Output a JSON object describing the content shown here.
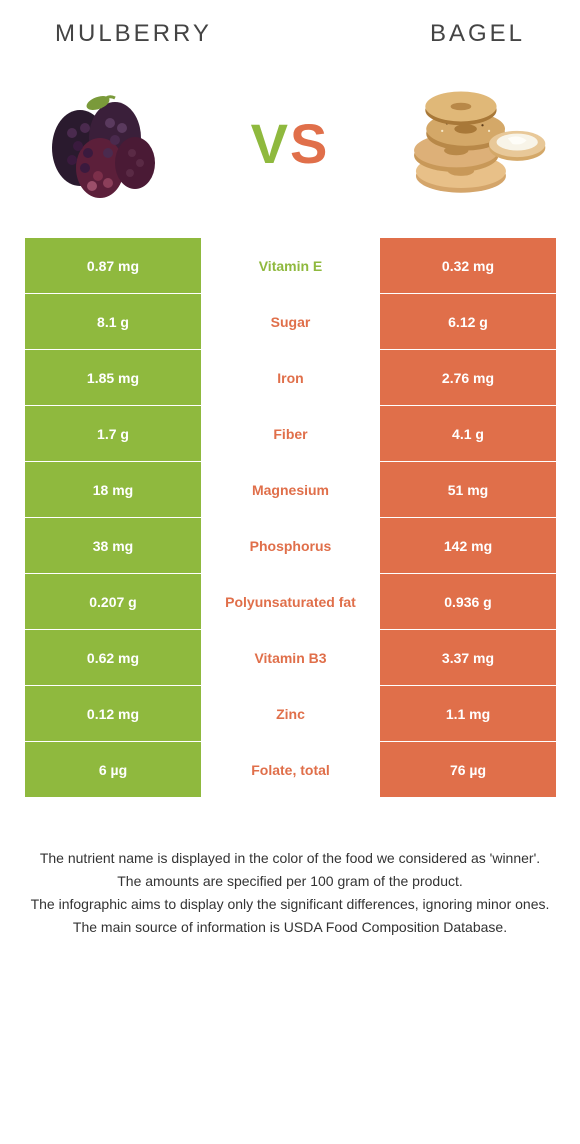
{
  "header": {
    "left": "Mulberry",
    "right": "Bagel"
  },
  "vs": {
    "v": "V",
    "s": "S"
  },
  "colors": {
    "green": "#8fb93e",
    "orange": "#e06f4a",
    "text": "#333333"
  },
  "table": {
    "rows": [
      {
        "left": "0.87 mg",
        "mid": "Vitamin E",
        "right": "0.32 mg",
        "mid_color": "#8fb93e"
      },
      {
        "left": "8.1 g",
        "mid": "Sugar",
        "right": "6.12 g",
        "mid_color": "#e06f4a"
      },
      {
        "left": "1.85 mg",
        "mid": "Iron",
        "right": "2.76 mg",
        "mid_color": "#e06f4a"
      },
      {
        "left": "1.7 g",
        "mid": "Fiber",
        "right": "4.1 g",
        "mid_color": "#e06f4a"
      },
      {
        "left": "18 mg",
        "mid": "Magnesium",
        "right": "51 mg",
        "mid_color": "#e06f4a"
      },
      {
        "left": "38 mg",
        "mid": "Phosphorus",
        "right": "142 mg",
        "mid_color": "#e06f4a"
      },
      {
        "left": "0.207 g",
        "mid": "Polyunsaturated fat",
        "right": "0.936 g",
        "mid_color": "#e06f4a"
      },
      {
        "left": "0.62 mg",
        "mid": "Vitamin B3",
        "right": "3.37 mg",
        "mid_color": "#e06f4a"
      },
      {
        "left": "0.12 mg",
        "mid": "Zinc",
        "right": "1.1 mg",
        "mid_color": "#e06f4a"
      },
      {
        "left": "6 µg",
        "mid": "Folate, total",
        "right": "76 µg",
        "mid_color": "#e06f4a"
      }
    ]
  },
  "footer": {
    "line1": "The nutrient name is displayed in the color of the food we considered as 'winner'.",
    "line2": "The amounts are specified per 100 gram of the product.",
    "line3": "The infographic aims to display only the significant differences, ignoring minor ones.",
    "line4": "The main source of information is USDA Food Composition Database."
  }
}
